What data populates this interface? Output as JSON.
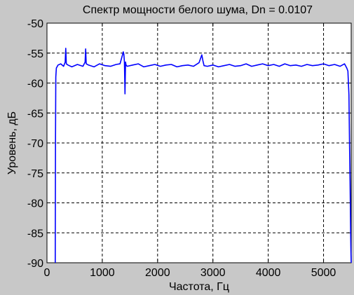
{
  "chart_data": {
    "type": "line",
    "title": "Спектр мощности белого шума, Dn = 0.0107",
    "xlabel": "Частота, Гц",
    "ylabel": "Уровень, дБ",
    "xlim": [
      0,
      5500
    ],
    "ylim": [
      -90,
      -50
    ],
    "xticks": [
      0,
      1000,
      2000,
      3000,
      4000,
      5000
    ],
    "yticks": [
      -90,
      -85,
      -80,
      -75,
      -70,
      -65,
      -60,
      -55,
      -50
    ],
    "xtick_labels": [
      "0",
      "1000",
      "2000",
      "3000",
      "4000",
      "5000"
    ],
    "ytick_labels": [
      "-90",
      "-85",
      "-80",
      "-75",
      "-70",
      "-65",
      "-60",
      "-55",
      "-50"
    ],
    "grid": true,
    "line_color": "#0000ff",
    "background": "#c8c8c8",
    "series": [
      {
        "x": [
          150,
          155,
          160,
          170,
          200,
          250,
          300,
          330,
          340,
          350,
          380,
          450,
          550,
          650,
          690,
          700,
          710,
          750,
          850,
          950,
          1050,
          1150,
          1250,
          1320,
          1360,
          1380,
          1390,
          1400,
          1410,
          1420,
          1430,
          1450,
          1550,
          1650,
          1750,
          1850,
          1950,
          2050,
          2150,
          2250,
          2350,
          2450,
          2550,
          2650,
          2750,
          2800,
          2820,
          2840,
          2900,
          3000,
          3100,
          3200,
          3300,
          3400,
          3500,
          3600,
          3700,
          3800,
          3900,
          4000,
          4100,
          4200,
          4300,
          4400,
          4500,
          4600,
          4700,
          4800,
          4900,
          5000,
          5100,
          5200,
          5300,
          5380,
          5420,
          5440,
          5460,
          5470,
          5480,
          5490,
          5495,
          5500
        ],
        "y": [
          -90,
          -69,
          -59,
          -57.5,
          -57,
          -56.8,
          -57.2,
          -56.5,
          -54.2,
          -56.8,
          -57,
          -57.3,
          -56.9,
          -57.2,
          -56.5,
          -54.3,
          -56.8,
          -57,
          -57.3,
          -56.8,
          -57.1,
          -57.2,
          -56.9,
          -56.8,
          -55.5,
          -54.8,
          -55.2,
          -56.5,
          -61.8,
          -56.5,
          -57,
          -57.2,
          -57,
          -56.8,
          -57.3,
          -57.1,
          -56.9,
          -57.2,
          -57,
          -56.9,
          -57.3,
          -57.1,
          -57.0,
          -57.2,
          -56.6,
          -55.3,
          -56.3,
          -57.1,
          -57.2,
          -57.0,
          -57.3,
          -57.1,
          -56.9,
          -57.2,
          -57.1,
          -56.8,
          -57.2,
          -57.0,
          -56.8,
          -57.1,
          -56.9,
          -57.2,
          -56.8,
          -57.1,
          -57.0,
          -57.2,
          -56.9,
          -57.1,
          -57.0,
          -56.8,
          -57.1,
          -56.9,
          -57.2,
          -56.8,
          -57.5,
          -58,
          -62,
          -70,
          -76.5,
          -85,
          -88,
          -90
        ]
      }
    ]
  }
}
